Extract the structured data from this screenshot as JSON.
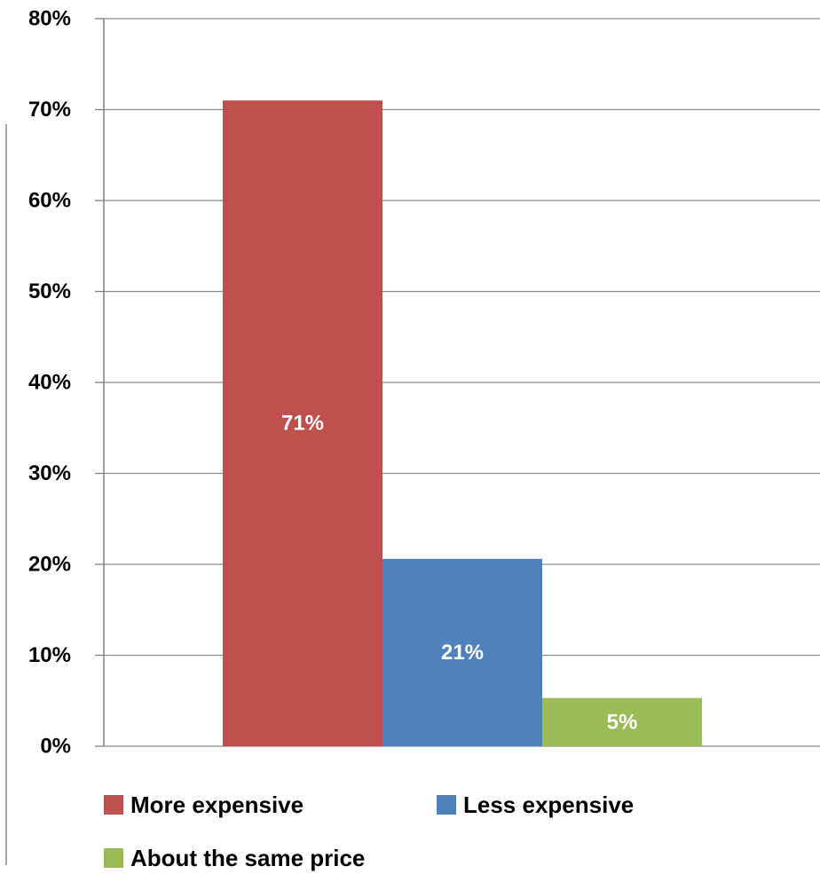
{
  "chart_data": {
    "type": "bar",
    "title": "",
    "xlabel": "",
    "ylabel": "",
    "ylim": [
      0,
      80
    ],
    "y_ticks": [
      "0%",
      "10%",
      "20%",
      "30%",
      "40%",
      "50%",
      "60%",
      "70%",
      "80%"
    ],
    "y_tick_values": [
      0,
      10,
      20,
      30,
      40,
      50,
      60,
      70,
      80
    ],
    "grid": true,
    "legend_position": "bottom",
    "series": [
      {
        "name": "More expensive",
        "value": 71,
        "label": "71%",
        "color": "#c0504d"
      },
      {
        "name": "Less expensive",
        "value": 20.6,
        "label": "21%",
        "color": "#4f81bd"
      },
      {
        "name": "About the same price",
        "value": 5.3,
        "label": "5%",
        "color": "#9bbb59"
      }
    ]
  }
}
